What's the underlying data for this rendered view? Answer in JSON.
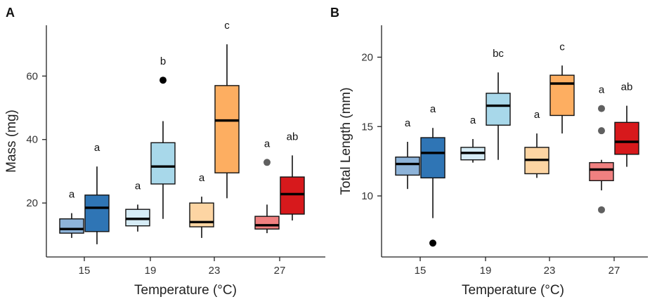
{
  "colors": {
    "15_left": "#8db3d9",
    "15_right": "#2f75b5",
    "19_left": "#d6ecf6",
    "19_right": "#a8d8ea",
    "23_left": "#fdd5a3",
    "23_right": "#fdae61",
    "27_left": "#f08080",
    "27_right": "#d7191c"
  },
  "chart_data": [
    {
      "panel": "A",
      "type": "box",
      "xlabel": "Temperature (°C)",
      "ylabel": "Mass (mg)",
      "categories": [
        "15",
        "19",
        "23",
        "27"
      ],
      "yticks": [
        20,
        40,
        60
      ],
      "ylim": [
        3,
        76
      ],
      "boxes": [
        {
          "cat": "15",
          "side": "left",
          "color_key": "15_left",
          "whisker_low": 9,
          "q1": 10.5,
          "median": 11.8,
          "q3": 15,
          "whisker_high": 16.8,
          "outliers": [],
          "sig": "a"
        },
        {
          "cat": "15",
          "side": "right",
          "color_key": "15_right",
          "whisker_low": 7,
          "q1": 11,
          "median": 18.5,
          "q3": 22.5,
          "whisker_high": 31.5,
          "outliers": [],
          "sig": "a"
        },
        {
          "cat": "19",
          "side": "left",
          "color_key": "19_left",
          "whisker_low": 11,
          "q1": 12.8,
          "median": 15,
          "q3": 18,
          "whisker_high": 19.5,
          "outliers": [],
          "sig": "a"
        },
        {
          "cat": "19",
          "side": "right",
          "color_key": "19_right",
          "whisker_low": 15,
          "q1": 26,
          "median": 31.5,
          "q3": 39,
          "whisker_high": 45.8,
          "outliers": [
            58.7
          ],
          "sig": "b"
        },
        {
          "cat": "23",
          "side": "left",
          "color_key": "23_left",
          "whisker_low": 9,
          "q1": 12.5,
          "median": 14,
          "q3": 20,
          "whisker_high": 22,
          "outliers": [],
          "sig": "a"
        },
        {
          "cat": "23",
          "side": "right",
          "color_key": "23_right",
          "whisker_low": 21.5,
          "q1": 29.5,
          "median": 46,
          "q3": 57,
          "whisker_high": 70,
          "outliers": [],
          "sig": "c"
        },
        {
          "cat": "27",
          "side": "left",
          "color_key": "27_left",
          "whisker_low": 10.5,
          "q1": 11.8,
          "median": 13,
          "q3": 15.8,
          "whisker_high": 19.5,
          "outliers": [
            32.8
          ],
          "sig": "a"
        },
        {
          "cat": "27",
          "side": "right",
          "color_key": "27_right",
          "whisker_low": 14.5,
          "q1": 16.5,
          "median": 22.8,
          "q3": 28.2,
          "whisker_high": 35,
          "outliers": [],
          "sig": "ab"
        }
      ]
    },
    {
      "panel": "B",
      "type": "box",
      "xlabel": "Temperature (°C)",
      "ylabel": "Total Length (mm)",
      "categories": [
        "15",
        "19",
        "23",
        "27"
      ],
      "yticks": [
        10,
        15,
        20
      ],
      "ylim": [
        5.6,
        22.3
      ],
      "boxes": [
        {
          "cat": "15",
          "side": "left",
          "color_key": "15_left",
          "whisker_low": 10.5,
          "q1": 11.5,
          "median": 12.3,
          "q3": 12.8,
          "whisker_high": 13.9,
          "outliers": [],
          "sig": "a"
        },
        {
          "cat": "15",
          "side": "right",
          "color_key": "15_right",
          "whisker_low": 8.4,
          "q1": 11.3,
          "median": 13.1,
          "q3": 14.2,
          "whisker_high": 14.9,
          "outliers": [
            6.6
          ],
          "sig": "a"
        },
        {
          "cat": "19",
          "side": "left",
          "color_key": "19_left",
          "whisker_low": 12.4,
          "q1": 12.6,
          "median": 13.1,
          "q3": 13.5,
          "whisker_high": 14.1,
          "outliers": [],
          "sig": "a"
        },
        {
          "cat": "19",
          "side": "right",
          "color_key": "19_right",
          "whisker_low": 12.6,
          "q1": 15.1,
          "median": 16.5,
          "q3": 17.4,
          "whisker_high": 18.9,
          "outliers": [],
          "sig": "bc"
        },
        {
          "cat": "23",
          "side": "left",
          "color_key": "23_left",
          "whisker_low": 11.3,
          "q1": 11.6,
          "median": 12.6,
          "q3": 13.5,
          "whisker_high": 14.5,
          "outliers": [],
          "sig": "a"
        },
        {
          "cat": "23",
          "side": "right",
          "color_key": "23_right",
          "whisker_low": 14.5,
          "q1": 15.8,
          "median": 18.1,
          "q3": 18.7,
          "whisker_high": 19.4,
          "outliers": [],
          "sig": "c"
        },
        {
          "cat": "27",
          "side": "left",
          "color_key": "27_left",
          "whisker_low": 10.4,
          "q1": 11.1,
          "median": 11.9,
          "q3": 12.4,
          "whisker_high": 12.6,
          "outliers": [
            16.3,
            14.7,
            9
          ],
          "sig": "a"
        },
        {
          "cat": "27",
          "side": "right",
          "color_key": "27_right",
          "whisker_low": 12.1,
          "q1": 13,
          "median": 13.9,
          "q3": 15.3,
          "whisker_high": 16.5,
          "outliers": [],
          "sig": "ab"
        }
      ]
    }
  ]
}
